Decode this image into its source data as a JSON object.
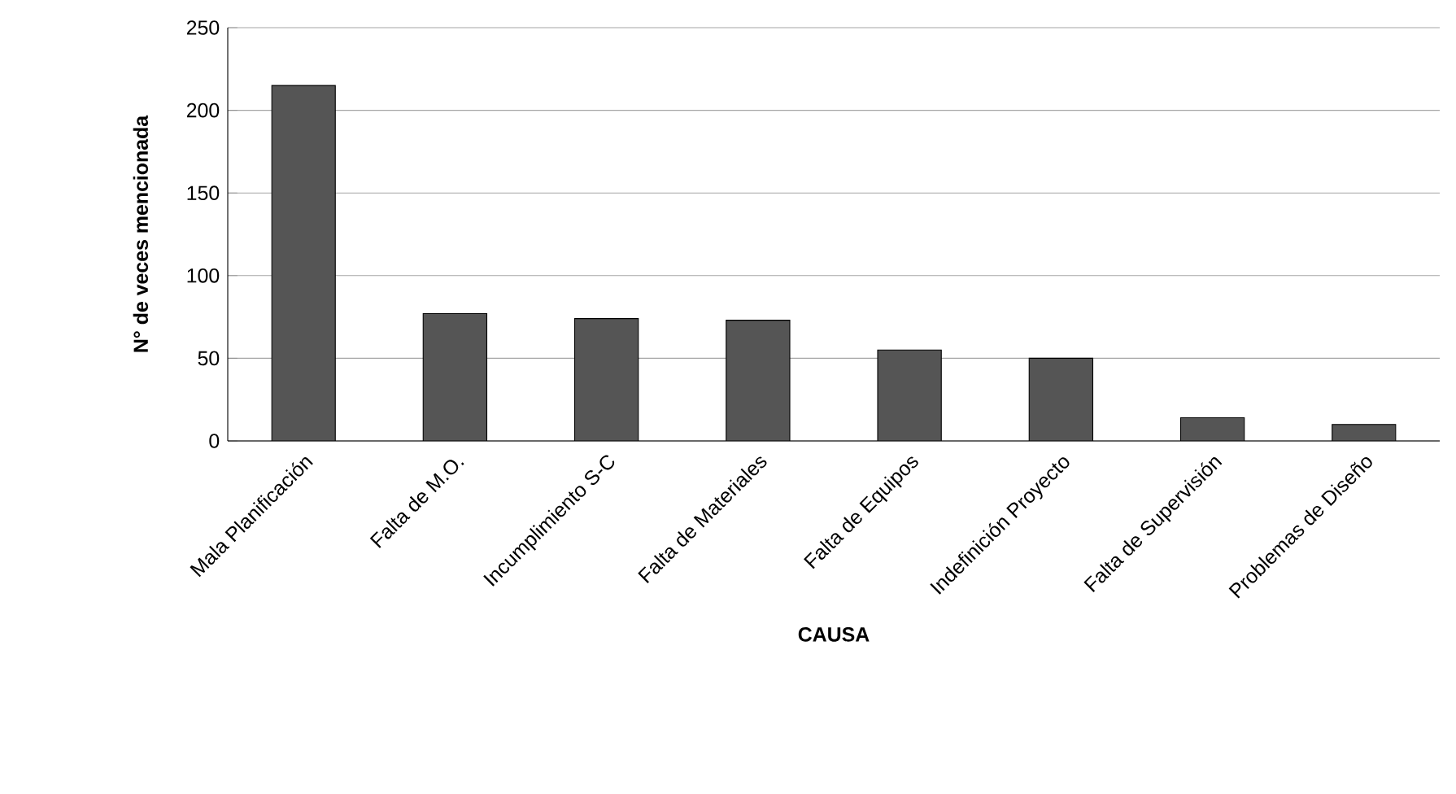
{
  "chart_data": {
    "type": "bar",
    "xlabel": "CAUSA",
    "ylabel": "N° de veces mencionada",
    "categories": [
      "Mala Planificación",
      "Falta de M.O.",
      "Incumplimiento S-C",
      "Falta de Materiales",
      "Falta de Equipos",
      "Indefinición Proyecto",
      "Falta de Supervisión",
      "Problemas de Diseño"
    ],
    "values": [
      215,
      77,
      74,
      73,
      55,
      50,
      14,
      10
    ],
    "color": "#555555",
    "ylim": [
      0,
      250
    ],
    "yticks": [
      0,
      50,
      100,
      150,
      200,
      250
    ],
    "grid": "y"
  }
}
